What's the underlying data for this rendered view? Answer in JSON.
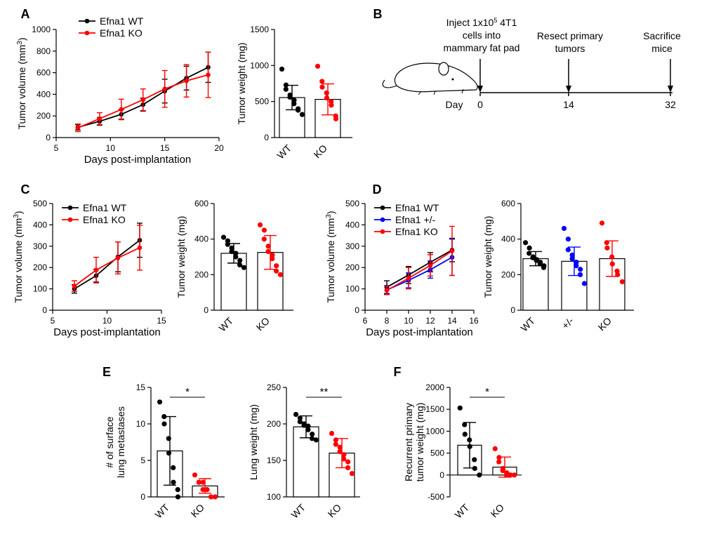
{
  "panel_letters": [
    "A",
    "B",
    "C",
    "D",
    "E",
    "F"
  ],
  "colors": {
    "wt": "#000000",
    "ko": "#ff0000",
    "het": "#0000ff"
  },
  "schematic": {
    "day_label": "Day",
    "events": [
      {
        "day": "0",
        "label_lines": [
          "Inject 1x10",
          "cells into",
          "mammary fat pad"
        ],
        "superscript": "5",
        "label_suffix": " 4T1"
      },
      {
        "day": "14",
        "label_lines": [
          "Resect primary",
          "tumors"
        ]
      },
      {
        "day": "32",
        "label_lines": [
          "Sacrifice",
          "mice"
        ]
      }
    ],
    "mouse_icon": "mouse-silhouette-icon"
  },
  "chart_data": [
    {
      "id": "A-volume",
      "type": "line",
      "xlabel": "Days post-implantation",
      "ylabel": "Tumor volume (mm",
      "ylabel_sup": "3",
      "ylabel_end": ")",
      "xlim": [
        5,
        20
      ],
      "ylim": [
        0,
        1000
      ],
      "xticks": [
        "5",
        "10",
        "15",
        "20"
      ],
      "yticks": [
        "0",
        "200",
        "400",
        "600",
        "800",
        "1000"
      ],
      "legend": "top-left",
      "series": [
        {
          "name": "Efna1 WT",
          "color": "#000000",
          "x": [
            7,
            9,
            11,
            13,
            15,
            17,
            19
          ],
          "y": [
            95,
            150,
            215,
            305,
            430,
            550,
            650
          ],
          "err": [
            25,
            35,
            45,
            60,
            110,
            110,
            140
          ]
        },
        {
          "name": "Efna1 KO",
          "color": "#ff0000",
          "x": [
            7,
            9,
            11,
            13,
            15,
            17,
            19
          ],
          "y": [
            90,
            175,
            260,
            350,
            450,
            525,
            580
          ],
          "err": [
            35,
            55,
            95,
            100,
            170,
            150,
            210
          ]
        }
      ]
    },
    {
      "id": "A-weight",
      "type": "bar",
      "ylabel": "Tumor weight (mg)",
      "ylim": [
        0,
        1500
      ],
      "yticks": [
        "0",
        "500",
        "1000",
        "1500"
      ],
      "categories": [
        "WT",
        "KO"
      ],
      "series": [
        {
          "name": "WT",
          "color": "#000000",
          "mean": 555,
          "sd": 170,
          "points": [
            950,
            730,
            670,
            590,
            560,
            520,
            470,
            400,
            380,
            320
          ]
        },
        {
          "name": "KO",
          "color": "#ff0000",
          "mean": 530,
          "sd": 215,
          "points": [
            990,
            780,
            700,
            620,
            550,
            500,
            450,
            300,
            260
          ]
        }
      ]
    },
    {
      "id": "C-volume",
      "type": "line",
      "xlabel": "Days post-implantation",
      "ylabel": "Tumor volume (mm",
      "ylabel_sup": "3",
      "ylabel_end": ")",
      "xlim": [
        5,
        15
      ],
      "ylim": [
        0,
        500
      ],
      "xticks": [
        "5",
        "10",
        "15"
      ],
      "yticks": [
        "0",
        "100",
        "200",
        "300",
        "400",
        "500"
      ],
      "legend": "top-left",
      "series": [
        {
          "name": "Efna1 WT",
          "color": "#000000",
          "x": [
            7,
            9,
            11,
            13
          ],
          "y": [
            100,
            162,
            250,
            328
          ],
          "err": [
            20,
            30,
            70,
            80
          ]
        },
        {
          "name": "Efna1 KO",
          "color": "#ff0000",
          "x": [
            7,
            9,
            11,
            13
          ],
          "y": [
            113,
            188,
            245,
            293
          ],
          "err": [
            25,
            60,
            75,
            105
          ]
        }
      ]
    },
    {
      "id": "C-weight",
      "type": "bar",
      "ylabel": "Tumor weight (mg)",
      "ylim": [
        0,
        600
      ],
      "yticks": [
        "0",
        "200",
        "400",
        "600"
      ],
      "categories": [
        "WT",
        "KO"
      ],
      "series": [
        {
          "name": "WT",
          "color": "#000000",
          "mean": 320,
          "sd": 55,
          "points": [
            410,
            390,
            370,
            350,
            330,
            320,
            300,
            280,
            255,
            240
          ]
        },
        {
          "name": "KO",
          "color": "#ff0000",
          "mean": 325,
          "sd": 95,
          "points": [
            480,
            450,
            400,
            360,
            330,
            310,
            290,
            250,
            220,
            200
          ]
        }
      ]
    },
    {
      "id": "D-volume",
      "type": "line",
      "xlabel": "Days post-implantation",
      "ylabel": "Tumor volume (mm",
      "ylabel_sup": "3",
      "ylabel_end": ")",
      "xlim": [
        6,
        16
      ],
      "ylim": [
        0,
        500
      ],
      "xticks": [
        "6",
        "8",
        "10",
        "12",
        "14",
        "16"
      ],
      "yticks": [
        "0",
        "100",
        "200",
        "300",
        "400",
        "500"
      ],
      "legend": "top-left",
      "series": [
        {
          "name": "Efna1 WT",
          "color": "#000000",
          "x": [
            8,
            10,
            12,
            14
          ],
          "y": [
            108,
            165,
            225,
            282
          ],
          "err": [
            30,
            40,
            45,
            55
          ]
        },
        {
          "name": "Efna1 +/-",
          "color": "#0000ff",
          "x": [
            8,
            10,
            12,
            14
          ],
          "y": [
            95,
            140,
            190,
            248
          ],
          "err": [
            20,
            35,
            40,
            85
          ]
        },
        {
          "name": "Efna1 KO",
          "color": "#ff0000",
          "x": [
            8,
            10,
            12,
            14
          ],
          "y": [
            93,
            150,
            210,
            278
          ],
          "err": [
            20,
            50,
            50,
            115
          ]
        }
      ]
    },
    {
      "id": "D-weight",
      "type": "bar",
      "ylabel": "Tumor weight (mg)",
      "ylim": [
        0,
        600
      ],
      "yticks": [
        "0",
        "200",
        "400",
        "600"
      ],
      "categories": [
        "WT",
        "+/-",
        "KO"
      ],
      "series": [
        {
          "name": "WT",
          "color": "#000000",
          "mean": 290,
          "sd": 40,
          "points": [
            380,
            350,
            320,
            300,
            295,
            285,
            280,
            270,
            260,
            250,
            240
          ]
        },
        {
          "name": "+/-",
          "color": "#0000ff",
          "mean": 275,
          "sd": 80,
          "points": [
            460,
            400,
            340,
            310,
            290,
            270,
            250,
            230,
            200,
            150
          ]
        },
        {
          "name": "KO",
          "color": "#ff0000",
          "mean": 290,
          "sd": 100,
          "points": [
            490,
            380,
            350,
            300,
            260,
            220,
            200,
            160
          ]
        }
      ]
    },
    {
      "id": "E-metastases",
      "type": "bar",
      "ylabel_lines": [
        "# of surface",
        "lung metastases"
      ],
      "ylim": [
        0,
        15
      ],
      "yticks": [
        "0",
        "5",
        "10",
        "15"
      ],
      "categories": [
        "WT",
        "KO"
      ],
      "significance": "*",
      "series": [
        {
          "name": "WT",
          "color": "#000000",
          "mean": 6.3,
          "sd": 4.7,
          "points": [
            13,
            11,
            10,
            8,
            6,
            4,
            2,
            1,
            0
          ]
        },
        {
          "name": "KO",
          "color": "#ff0000",
          "mean": 1.5,
          "sd": 1.0,
          "points": [
            3,
            2,
            2,
            2,
            1,
            1,
            1,
            0,
            0,
            0
          ]
        }
      ]
    },
    {
      "id": "E-lungweight",
      "type": "bar",
      "ylabel": "Lung weight (mg)",
      "ylim": [
        100,
        250
      ],
      "yticks": [
        "100",
        "150",
        "200",
        "250"
      ],
      "categories": [
        "WT",
        "KO"
      ],
      "significance": "**",
      "series": [
        {
          "name": "WT",
          "color": "#000000",
          "mean": 196,
          "sd": 15,
          "points": [
            213,
            208,
            203,
            200,
            198,
            197,
            192,
            186,
            180,
            178
          ]
        },
        {
          "name": "KO",
          "color": "#ff0000",
          "mean": 160,
          "sd": 20,
          "points": [
            187,
            178,
            172,
            168,
            162,
            158,
            152,
            148,
            140,
            132
          ]
        }
      ]
    },
    {
      "id": "F-recurrent",
      "type": "bar",
      "ylabel_lines": [
        "Recurrent primary",
        "tumor weight (mg)"
      ],
      "ylim": [
        -500,
        2000
      ],
      "yticks": [
        "-500",
        "0",
        "500",
        "1000",
        "1500",
        "2000"
      ],
      "categories": [
        "WT",
        "KO"
      ],
      "significance": "*",
      "series": [
        {
          "name": "WT",
          "color": "#000000",
          "mean": 680,
          "sd": 520,
          "points": [
            1530,
            1150,
            930,
            800,
            650,
            350,
            150,
            0
          ]
        },
        {
          "name": "KO",
          "color": "#ff0000",
          "mean": 180,
          "sd": 230,
          "points": [
            600,
            400,
            300,
            150,
            100,
            50,
            0,
            0,
            0,
            0
          ]
        }
      ]
    }
  ]
}
